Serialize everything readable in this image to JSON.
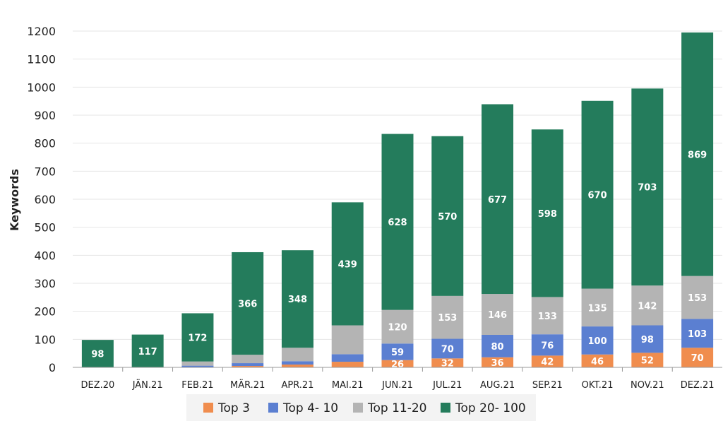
{
  "chart_data": {
    "type": "bar",
    "stacked": true,
    "ylabel": "Keywords",
    "ylim": [
      0,
      1200
    ],
    "yticks": [
      0,
      100,
      200,
      300,
      400,
      500,
      600,
      700,
      800,
      900,
      1000,
      1100,
      1200
    ],
    "grid": true,
    "legend_position": "bottom",
    "categories": [
      "DEZ.20",
      "JÄN.21",
      "FEB.21",
      "MÄR.21",
      "APR.21",
      "MAI.21",
      "JUN.21",
      "JUL.21",
      "AUG.21",
      "SEP.21",
      "OKT.21",
      "NOV.21",
      "DEZ.21"
    ],
    "series": [
      {
        "name": "Top 3",
        "color": "#f08d4e",
        "values": [
          0,
          0,
          1,
          5,
          10,
          20,
          26,
          32,
          36,
          42,
          46,
          52,
          70
        ],
        "labels": [
          "",
          "",
          "",
          "",
          "",
          "",
          "26",
          "32",
          "36",
          "42",
          "46",
          "52",
          "70"
        ]
      },
      {
        "name": "Top 4- 10",
        "color": "#5b7fd1",
        "values": [
          0,
          0,
          5,
          10,
          12,
          27,
          59,
          70,
          80,
          76,
          100,
          98,
          103
        ],
        "labels": [
          "",
          "",
          "",
          "",
          "",
          "",
          "59",
          "70",
          "80",
          "76",
          "100",
          "98",
          "103"
        ]
      },
      {
        "name": "Top 11-20",
        "color": "#b4b4b4",
        "values": [
          0,
          0,
          15,
          30,
          48,
          103,
          120,
          153,
          146,
          133,
          135,
          142,
          153
        ],
        "labels": [
          "",
          "",
          "",
          "",
          "",
          "",
          "120",
          "153",
          "146",
          "133",
          "135",
          "142",
          "153"
        ]
      },
      {
        "name": "Top 20- 100",
        "color": "#247c5c",
        "values": [
          98,
          117,
          172,
          366,
          348,
          439,
          628,
          570,
          677,
          598,
          670,
          703,
          869
        ],
        "labels": [
          "98",
          "117",
          "172",
          "366",
          "348",
          "439",
          "628",
          "570",
          "677",
          "598",
          "670",
          "703",
          "869"
        ]
      }
    ]
  }
}
